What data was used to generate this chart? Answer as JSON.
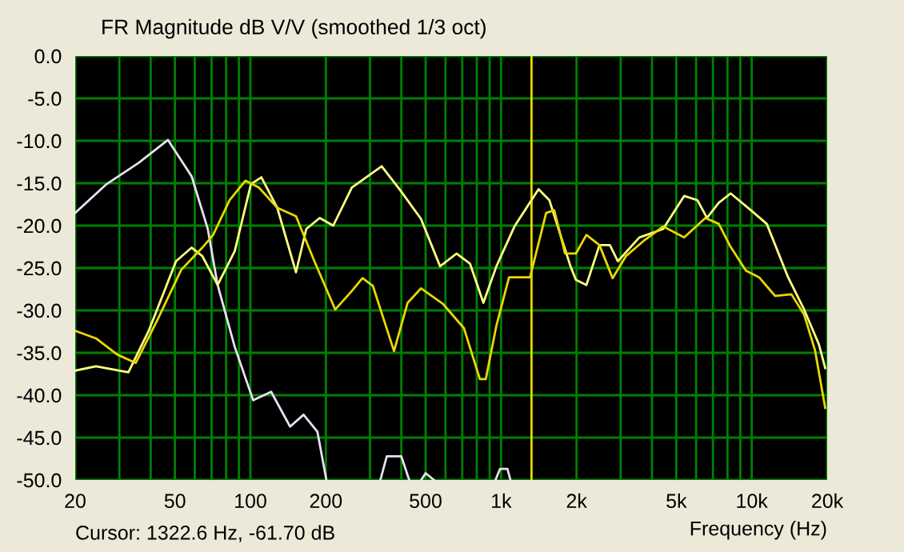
{
  "chart_data": {
    "type": "line",
    "title": "FR Magnitude dB V/V (smoothed 1/3 oct)",
    "xlabel": "Frequency (Hz)",
    "annotations": [
      "Cursor: 1322.6 Hz, -61.70 dB"
    ],
    "log": "x",
    "grid": true,
    "line_style": "solid",
    "marker": "none",
    "xlim": [
      20,
      20000
    ],
    "ylim": [
      -50,
      0
    ],
    "xticks": [
      20,
      {
        "value": 30,
        "label": null
      },
      {
        "value": 40,
        "label": null
      },
      50,
      {
        "value": 60,
        "label": null
      },
      {
        "value": 70,
        "label": null
      },
      {
        "value": 80,
        "label": null
      },
      {
        "value": 90,
        "label": null
      },
      100,
      200,
      {
        "value": 300,
        "label": null
      },
      {
        "value": 400,
        "label": null
      },
      500,
      {
        "value": 600,
        "label": null
      },
      {
        "value": 700,
        "label": null
      },
      {
        "value": 800,
        "label": null
      },
      {
        "value": 900,
        "label": null
      },
      {
        "value": 1000,
        "label": "1k"
      },
      {
        "value": 2000,
        "label": "2k"
      },
      {
        "value": 3000,
        "label": null
      },
      {
        "value": 4000,
        "label": null
      },
      {
        "value": 5000,
        "label": "5k"
      },
      {
        "value": 6000,
        "label": null
      },
      {
        "value": 7000,
        "label": null
      },
      {
        "value": 8000,
        "label": null
      },
      {
        "value": 9000,
        "label": null
      },
      {
        "value": 10000,
        "label": "10k"
      },
      {
        "value": 20000,
        "label": "20k"
      }
    ],
    "yticks": [
      {
        "value": 0,
        "label": "0.0"
      },
      {
        "value": -5,
        "label": "-5.0"
      },
      {
        "value": -10,
        "label": "-10.0"
      },
      {
        "value": -15,
        "label": "-15.0"
      },
      {
        "value": -20,
        "label": "-20.0"
      },
      {
        "value": -25,
        "label": "-25.0"
      },
      {
        "value": -30,
        "label": "-30.0"
      },
      {
        "value": -35,
        "label": "-35.0"
      },
      {
        "value": -40,
        "label": "-40.0"
      },
      {
        "value": -45,
        "label": "-45.0"
      },
      {
        "value": -50,
        "label": "-50.0"
      }
    ],
    "ref_lines": [
      {
        "axis": "x",
        "value": 1322.6,
        "color": "#e8d800"
      }
    ],
    "series": [
      {
        "color": "#e8e0f0",
        "x": [
          20,
          26.7,
          35.8,
          46.9,
          58.3,
          67.6,
          74,
          86.6,
          102.6,
          121,
          144,
          163,
          185,
          201,
          300,
          330,
          350,
          400,
          430,
          460,
          480,
          500,
          540,
          560,
          950,
          990,
          1020,
          1060,
          1090
        ],
        "values": [
          -18.5,
          -15.1,
          -12.6,
          -9.9,
          -14.2,
          -20.4,
          -27,
          -34.3,
          -40.6,
          -39.6,
          -43.7,
          -42.3,
          -44.3,
          -50,
          null,
          -50,
          -47.2,
          -47.2,
          -50,
          null,
          -50,
          -49.2,
          -50,
          null,
          -50,
          -48.7,
          -48.7,
          -48.7,
          -50
        ]
      },
      {
        "color": "#ffff80",
        "x": [
          20,
          24.2,
          32.6,
          39.3,
          50.5,
          58.3,
          64.3,
          74,
          86.6,
          100.5,
          110.6,
          128,
          152,
          167,
          189,
          214,
          254,
          334,
          393,
          479,
          571,
          664,
          752,
          850,
          958,
          1131,
          1411,
          1558,
          1892,
          1988,
          2190,
          2469,
          2717,
          2924,
          3560,
          4430,
          5375,
          6070,
          6630,
          7390,
          8240,
          9930,
          11480,
          13970,
          16180,
          18530,
          19640
        ],
        "values": [
          -37.1,
          -36.6,
          -37.3,
          -32.4,
          -24.2,
          -22.6,
          -23.6,
          -27,
          -23,
          -15.1,
          -14.3,
          -17.9,
          -25.5,
          -20.4,
          -19.1,
          -20,
          -15.5,
          -13,
          -15.7,
          -19.2,
          -24.8,
          -23.3,
          -24.5,
          -29.1,
          -24.8,
          -20.1,
          -15.7,
          -17,
          -24.8,
          -26.4,
          -27,
          -22.3,
          -22.3,
          -24.2,
          -21.4,
          -20.4,
          -16.5,
          -17,
          -19.1,
          -17.3,
          -16.2,
          -18.2,
          -19.8,
          -26.1,
          -29.9,
          -34,
          -36.8
        ]
      },
      {
        "color": "#e8d800",
        "x": [
          20,
          24.2,
          29.4,
          34.9,
          42.6,
          53,
          64.3,
          71,
          82.6,
          95.5,
          108,
          128,
          152,
          180,
          218,
          254,
          280,
          308,
          374,
          424,
          479,
          585,
          711,
          823,
          869,
          958,
          1076,
          1305,
          1513,
          1630,
          1800,
          1988,
          2190,
          2469,
          2785,
          3148,
          3740,
          4430,
          5375,
          6530,
          7390,
          8160,
          9480,
          10700,
          12400,
          14400,
          16180,
          17880,
          19640
        ],
        "values": [
          -32.4,
          -33.3,
          -35.2,
          -36.2,
          -31.1,
          -25.2,
          -22.6,
          -21.1,
          -17,
          -14.7,
          -15.5,
          -17.9,
          -18.9,
          -24.2,
          -29.9,
          -27.7,
          -26.2,
          -27.1,
          -34.8,
          -29.1,
          -27.4,
          -29.2,
          -32.1,
          -38.1,
          -38.1,
          -31.8,
          -26.1,
          -26.1,
          -18.5,
          -18.2,
          -23.3,
          -23.3,
          -21.1,
          -22.3,
          -26.2,
          -23.6,
          -21.7,
          -20.1,
          -21.4,
          -19.1,
          -19.8,
          -22.3,
          -25.3,
          -26.1,
          -28.3,
          -28.1,
          -30.5,
          -34.7,
          -41.5
        ]
      }
    ]
  }
}
